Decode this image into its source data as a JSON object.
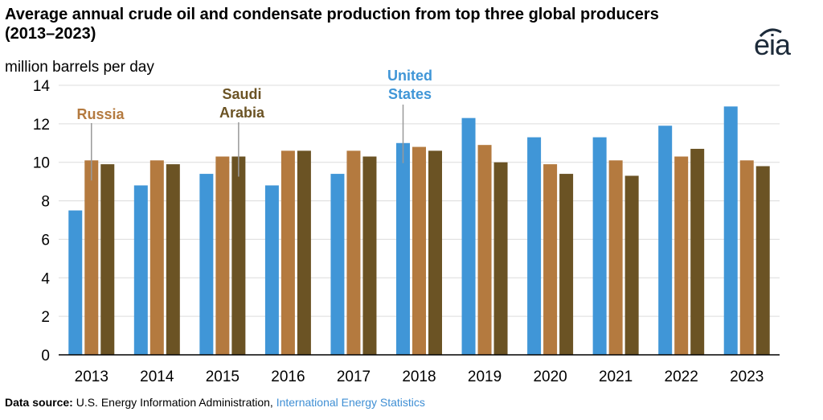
{
  "header": {
    "title_line1": "Average annual crude oil and condensate production from top three global producers",
    "title_line2": "(2013–2023)",
    "unit_label": "million barrels per day",
    "logo_text": "eia"
  },
  "footer": {
    "label": "Data source:",
    "text": " U.S. Energy Information Administration, ",
    "link": "International Energy Statistics"
  },
  "colors": {
    "united_states": "#4096d7",
    "russia": "#b47a3f",
    "saudi_arabia": "#6b5324",
    "grid": "#dcdcdc",
    "axis": "#000000"
  },
  "chart_data": {
    "type": "bar",
    "title": "Average annual crude oil and condensate production from top three global producers (2013–2023)",
    "ylabel": "million barrels per day",
    "xlabel": "",
    "ylim": [
      0,
      14
    ],
    "yticks": [
      0,
      2,
      4,
      6,
      8,
      10,
      12,
      14
    ],
    "grid": true,
    "legend": "direct labels on chart",
    "categories": [
      "2013",
      "2014",
      "2015",
      "2016",
      "2017",
      "2018",
      "2019",
      "2020",
      "2021",
      "2022",
      "2023"
    ],
    "series": [
      {
        "name": "United States",
        "label_lines": [
          "United",
          "States"
        ],
        "color": "#4096d7",
        "values": [
          7.5,
          8.8,
          9.4,
          8.8,
          9.4,
          11.0,
          12.3,
          11.3,
          11.3,
          11.9,
          12.9
        ]
      },
      {
        "name": "Russia",
        "label_lines": [
          "Russia"
        ],
        "color": "#b47a3f",
        "values": [
          10.1,
          10.1,
          10.3,
          10.6,
          10.6,
          10.8,
          10.9,
          9.9,
          10.1,
          10.3,
          10.1
        ]
      },
      {
        "name": "Saudi Arabia",
        "label_lines": [
          "Saudi",
          "Arabia"
        ],
        "color": "#6b5324",
        "values": [
          9.9,
          9.9,
          10.3,
          10.6,
          10.3,
          10.6,
          10.0,
          9.4,
          9.3,
          10.7,
          9.8
        ]
      }
    ]
  }
}
